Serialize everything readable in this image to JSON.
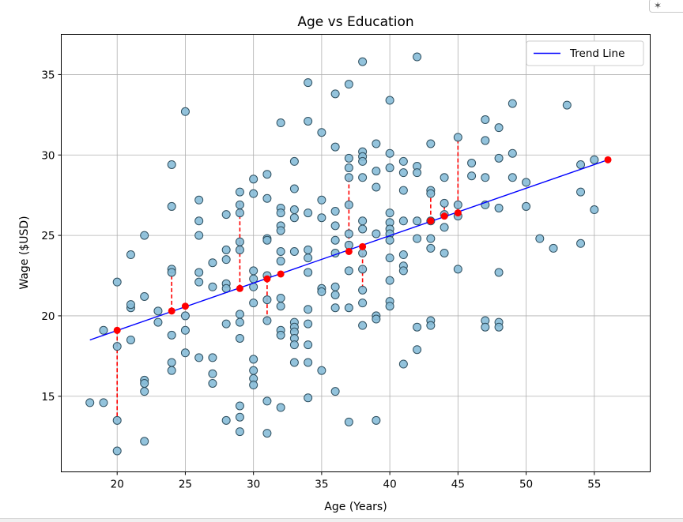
{
  "chart_data": {
    "type": "scatter",
    "title": "Age vs Education",
    "xlabel": "Age (Years)",
    "ylabel": "Wage ($USD)",
    "xlim": [
      15.9,
      59.1
    ],
    "ylim": [
      10.3,
      37.5
    ],
    "xticks": [
      20,
      25,
      30,
      35,
      40,
      45,
      50,
      55
    ],
    "yticks": [
      15,
      20,
      25,
      30,
      35
    ],
    "grid": true,
    "legend": {
      "position": "top-right",
      "entries": [
        {
          "label": "Trend Line",
          "color": "#0000ff"
        }
      ]
    },
    "colors": {
      "points_fill": "#87bdd8",
      "points_edge": "#2f4f5f",
      "trend": "#0000ff",
      "highlight": "#ff0000"
    },
    "trend_line": {
      "x": [
        18,
        56
      ],
      "y": [
        18.5,
        29.7
      ]
    },
    "points": [
      [
        18,
        14.6
      ],
      [
        19,
        14.6
      ],
      [
        19,
        19.1
      ],
      [
        20,
        22.1
      ],
      [
        20,
        18.1
      ],
      [
        20,
        13.5
      ],
      [
        20,
        11.6
      ],
      [
        21,
        20.5
      ],
      [
        21,
        20.7
      ],
      [
        21,
        18.5
      ],
      [
        21,
        23.8
      ],
      [
        22,
        25.0
      ],
      [
        22,
        21.2
      ],
      [
        22,
        16.0
      ],
      [
        22,
        15.8
      ],
      [
        22,
        15.3
      ],
      [
        22,
        12.2
      ],
      [
        23,
        20.3
      ],
      [
        23,
        19.6
      ],
      [
        24,
        29.4
      ],
      [
        24,
        26.8
      ],
      [
        24,
        22.9
      ],
      [
        24,
        22.7
      ],
      [
        24,
        18.8
      ],
      [
        24,
        17.1
      ],
      [
        24,
        16.6
      ],
      [
        25,
        32.7
      ],
      [
        25,
        20.0
      ],
      [
        25,
        19.1
      ],
      [
        25,
        17.7
      ],
      [
        26,
        27.2
      ],
      [
        26,
        25.9
      ],
      [
        26,
        25.0
      ],
      [
        26,
        22.7
      ],
      [
        26,
        22.1
      ],
      [
        26,
        17.4
      ],
      [
        27,
        23.3
      ],
      [
        27,
        21.8
      ],
      [
        27,
        17.4
      ],
      [
        27,
        16.4
      ],
      [
        27,
        15.8
      ],
      [
        28,
        26.3
      ],
      [
        28,
        24.1
      ],
      [
        28,
        23.5
      ],
      [
        28,
        22.0
      ],
      [
        28,
        21.7
      ],
      [
        28,
        19.5
      ],
      [
        28,
        13.5
      ],
      [
        29,
        27.7
      ],
      [
        29,
        26.9
      ],
      [
        29,
        26.4
      ],
      [
        29,
        24.6
      ],
      [
        29,
        24.1
      ],
      [
        29,
        20.1
      ],
      [
        29,
        19.6
      ],
      [
        29,
        18.6
      ],
      [
        29,
        14.4
      ],
      [
        29,
        13.7
      ],
      [
        29,
        12.8
      ],
      [
        30,
        28.5
      ],
      [
        30,
        27.6
      ],
      [
        30,
        22.8
      ],
      [
        30,
        22.3
      ],
      [
        30,
        21.8
      ],
      [
        30,
        20.8
      ],
      [
        30,
        17.3
      ],
      [
        30,
        16.6
      ],
      [
        30,
        16.1
      ],
      [
        30,
        15.7
      ],
      [
        31,
        28.8
      ],
      [
        31,
        27.3
      ],
      [
        31,
        24.8
      ],
      [
        31,
        24.7
      ],
      [
        31,
        22.5
      ],
      [
        31,
        21.0
      ],
      [
        31,
        19.7
      ],
      [
        31,
        14.7
      ],
      [
        31,
        12.7
      ],
      [
        32,
        32.0
      ],
      [
        32,
        26.7
      ],
      [
        32,
        26.4
      ],
      [
        32,
        25.6
      ],
      [
        32,
        25.3
      ],
      [
        32,
        24.0
      ],
      [
        32,
        23.4
      ],
      [
        32,
        21.1
      ],
      [
        32,
        20.6
      ],
      [
        32,
        19.1
      ],
      [
        32,
        18.8
      ],
      [
        32,
        14.3
      ],
      [
        33,
        29.6
      ],
      [
        33,
        27.9
      ],
      [
        33,
        26.6
      ],
      [
        33,
        26.1
      ],
      [
        33,
        24.0
      ],
      [
        33,
        19.6
      ],
      [
        33,
        19.3
      ],
      [
        33,
        19.0
      ],
      [
        33,
        18.6
      ],
      [
        33,
        18.2
      ],
      [
        33,
        17.1
      ],
      [
        34,
        34.5
      ],
      [
        34,
        32.1
      ],
      [
        34,
        26.4
      ],
      [
        34,
        24.1
      ],
      [
        34,
        23.6
      ],
      [
        34,
        22.7
      ],
      [
        34,
        20.4
      ],
      [
        34,
        19.5
      ],
      [
        34,
        18.2
      ],
      [
        34,
        17.1
      ],
      [
        34,
        14.9
      ],
      [
        35,
        31.4
      ],
      [
        35,
        27.2
      ],
      [
        35,
        26.1
      ],
      [
        35,
        21.7
      ],
      [
        35,
        21.5
      ],
      [
        35,
        16.6
      ],
      [
        36,
        33.8
      ],
      [
        36,
        30.5
      ],
      [
        36,
        26.5
      ],
      [
        36,
        25.6
      ],
      [
        36,
        24.7
      ],
      [
        36,
        23.9
      ],
      [
        36,
        21.8
      ],
      [
        36,
        21.3
      ],
      [
        36,
        20.5
      ],
      [
        36,
        15.3
      ],
      [
        37,
        34.4
      ],
      [
        37,
        29.8
      ],
      [
        37,
        29.2
      ],
      [
        37,
        28.6
      ],
      [
        37,
        26.9
      ],
      [
        37,
        25.1
      ],
      [
        37,
        24.4
      ],
      [
        37,
        22.8
      ],
      [
        37,
        20.5
      ],
      [
        37,
        13.4
      ],
      [
        38,
        35.8
      ],
      [
        38,
        30.2
      ],
      [
        38,
        29.9
      ],
      [
        38,
        29.6
      ],
      [
        38,
        28.6
      ],
      [
        38,
        25.9
      ],
      [
        38,
        25.4
      ],
      [
        38,
        23.9
      ],
      [
        38,
        22.9
      ],
      [
        38,
        21.6
      ],
      [
        38,
        20.8
      ],
      [
        38,
        19.4
      ],
      [
        39,
        30.7
      ],
      [
        39,
        29.0
      ],
      [
        39,
        28.0
      ],
      [
        39,
        25.1
      ],
      [
        39,
        20.0
      ],
      [
        39,
        19.8
      ],
      [
        39,
        13.5
      ],
      [
        40,
        33.4
      ],
      [
        40,
        30.1
      ],
      [
        40,
        29.2
      ],
      [
        40,
        26.4
      ],
      [
        40,
        25.8
      ],
      [
        40,
        25.4
      ],
      [
        40,
        25.1
      ],
      [
        40,
        24.7
      ],
      [
        40,
        23.6
      ],
      [
        40,
        22.2
      ],
      [
        40,
        20.9
      ],
      [
        40,
        20.6
      ],
      [
        41,
        29.6
      ],
      [
        41,
        28.9
      ],
      [
        41,
        27.8
      ],
      [
        41,
        25.9
      ],
      [
        41,
        23.8
      ],
      [
        41,
        23.1
      ],
      [
        41,
        22.8
      ],
      [
        41,
        17.0
      ],
      [
        42,
        36.1
      ],
      [
        42,
        29.3
      ],
      [
        42,
        28.9
      ],
      [
        42,
        25.9
      ],
      [
        42,
        24.8
      ],
      [
        42,
        19.3
      ],
      [
        42,
        17.9
      ],
      [
        43,
        30.7
      ],
      [
        43,
        27.8
      ],
      [
        43,
        27.6
      ],
      [
        43,
        25.9
      ],
      [
        43,
        24.8
      ],
      [
        43,
        24.2
      ],
      [
        43,
        19.7
      ],
      [
        43,
        19.4
      ],
      [
        44,
        28.6
      ],
      [
        44,
        27.0
      ],
      [
        44,
        26.3
      ],
      [
        44,
        25.5
      ],
      [
        44,
        23.9
      ],
      [
        45,
        31.1
      ],
      [
        45,
        26.9
      ],
      [
        45,
        26.2
      ],
      [
        45,
        22.9
      ],
      [
        46,
        29.5
      ],
      [
        46,
        28.7
      ],
      [
        47,
        32.2
      ],
      [
        47,
        30.9
      ],
      [
        47,
        28.6
      ],
      [
        47,
        26.9
      ],
      [
        47,
        19.7
      ],
      [
        47,
        19.3
      ],
      [
        48,
        31.7
      ],
      [
        48,
        29.8
      ],
      [
        48,
        26.7
      ],
      [
        48,
        22.7
      ],
      [
        48,
        19.6
      ],
      [
        48,
        19.3
      ],
      [
        49,
        33.2
      ],
      [
        49,
        30.1
      ],
      [
        49,
        28.6
      ],
      [
        50,
        28.3
      ],
      [
        50,
        26.8
      ],
      [
        51,
        24.8
      ],
      [
        52,
        24.2
      ],
      [
        53,
        33.1
      ],
      [
        54,
        29.4
      ],
      [
        54,
        27.7
      ],
      [
        54,
        24.5
      ],
      [
        55,
        29.7
      ],
      [
        55,
        26.6
      ]
    ],
    "highlight_points": [
      [
        20,
        19.1
      ],
      [
        24,
        20.3
      ],
      [
        25,
        20.6
      ],
      [
        29,
        21.7
      ],
      [
        31,
        22.3
      ],
      [
        32,
        22.6
      ],
      [
        37,
        24.0
      ],
      [
        38,
        24.3
      ],
      [
        43,
        25.9
      ],
      [
        44,
        26.2
      ],
      [
        45,
        26.4
      ],
      [
        56,
        29.7
      ]
    ],
    "residual_segments": [
      [
        20,
        19.1,
        13.5
      ],
      [
        24,
        20.3,
        23.0
      ],
      [
        29,
        21.7,
        27.0
      ],
      [
        31,
        22.3,
        19.7
      ],
      [
        37,
        24.0,
        28.7
      ],
      [
        38,
        24.3,
        21.6
      ],
      [
        43,
        25.9,
        27.7
      ],
      [
        44,
        26.2,
        27.0
      ],
      [
        45,
        26.4,
        31.1
      ]
    ]
  }
}
